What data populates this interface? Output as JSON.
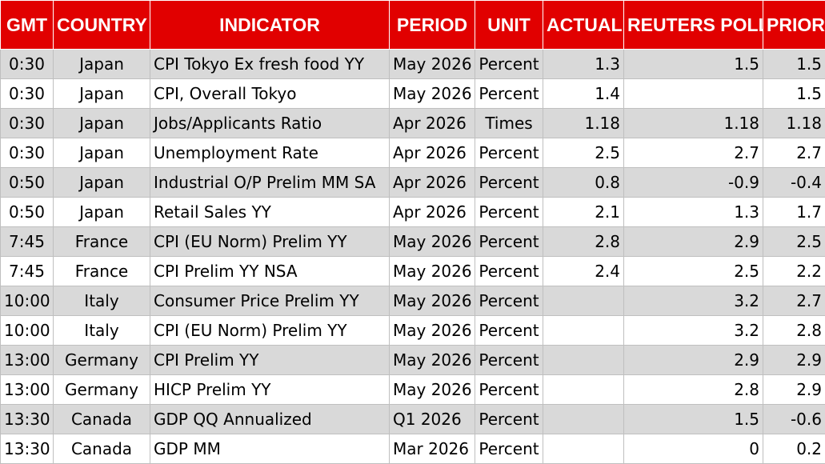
{
  "colors": {
    "header_bg": "#e10000",
    "header_text": "#ffffff",
    "row_shaded": "#d9d9d9",
    "row_plain": "#ffffff"
  },
  "headers": [
    "GMT",
    "COUNTRY",
    "INDICATOR",
    "PERIOD",
    "UNIT",
    "ACTUAL",
    "REUTERS POLL",
    "PRIOR"
  ],
  "rows": [
    [
      "0:30",
      "Japan",
      "CPI Tokyo Ex fresh food YY",
      "May 2026",
      "Percent",
      "1.3",
      "1.5",
      "1.5"
    ],
    [
      "0:30",
      "Japan",
      "CPI, Overall Tokyo",
      "May 2026",
      "Percent",
      "1.4",
      "",
      "1.5"
    ],
    [
      "0:30",
      "Japan",
      "Jobs/Applicants Ratio",
      "Apr 2026",
      "Times",
      "1.18",
      "1.18",
      "1.18"
    ],
    [
      "0:30",
      "Japan",
      "Unemployment Rate",
      "Apr 2026",
      "Percent",
      "2.5",
      "2.7",
      "2.7"
    ],
    [
      "0:50",
      "Japan",
      "Industrial O/P Prelim MM SA",
      "Apr 2026",
      "Percent",
      "0.8",
      "-0.9",
      "-0.4"
    ],
    [
      "0:50",
      "Japan",
      "Retail Sales YY",
      "Apr 2026",
      "Percent",
      "2.1",
      "1.3",
      "1.7"
    ],
    [
      "7:45",
      "France",
      "CPI (EU Norm) Prelim YY",
      "May 2026",
      "Percent",
      "2.8",
      "2.9",
      "2.5"
    ],
    [
      "7:45",
      "France",
      "CPI Prelim YY NSA",
      "May 2026",
      "Percent",
      "2.4",
      "2.5",
      "2.2"
    ],
    [
      "10:00",
      "Italy",
      "Consumer Price Prelim YY",
      "May 2026",
      "Percent",
      "",
      "3.2",
      "2.7"
    ],
    [
      "10:00",
      "Italy",
      "CPI (EU Norm) Prelim YY",
      "May 2026",
      "Percent",
      "",
      "3.2",
      "2.8"
    ],
    [
      "13:00",
      "Germany",
      "CPI Prelim YY",
      "May 2026",
      "Percent",
      "",
      "2.9",
      "2.9"
    ],
    [
      "13:00",
      "Germany",
      "HICP Prelim YY",
      "May 2026",
      "Percent",
      "",
      "2.8",
      "2.9"
    ],
    [
      "13:30",
      "Canada",
      "GDP QQ Annualized",
      "Q1 2026",
      "Percent",
      "",
      "1.5",
      "-0.6"
    ],
    [
      "13:30",
      "Canada",
      "GDP MM",
      "Mar 2026",
      "Percent",
      "",
      "0",
      "0.2"
    ]
  ]
}
